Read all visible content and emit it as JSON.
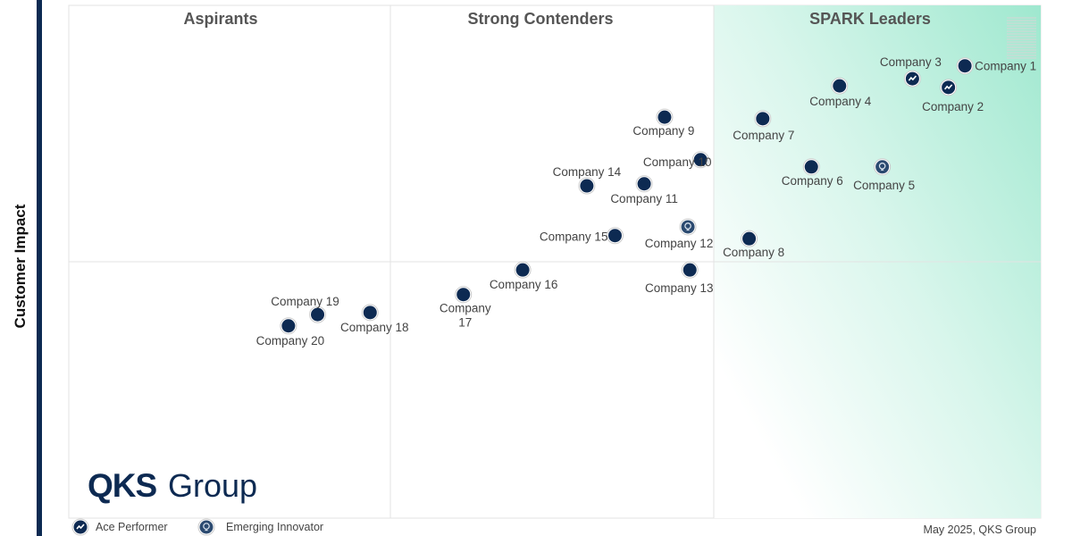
{
  "chart_data": {
    "type": "scatter",
    "title": "",
    "xlabel": "",
    "ylabel": "Customer Impact",
    "xlim": [
      0,
      100
    ],
    "ylim": [
      0,
      100
    ],
    "grid": "quadrant dividers",
    "quadrants": [
      "Aspirants",
      "Strong Contenders",
      "SPARK Leaders"
    ],
    "legend": {
      "placement": "bottom-left",
      "items": [
        {
          "key": "ace",
          "label": "Ace Performer"
        },
        {
          "key": "innovator",
          "label": "Emerging Innovator"
        }
      ]
    },
    "colors": {
      "marker": "#0d2a52",
      "innovator": "#2b4a70",
      "leader_gradient": "#9fe8cf",
      "axis_bar": "#0d2a52"
    },
    "points": [
      {
        "name": "Company 1",
        "x": 92.2,
        "y": 88.2,
        "type": "standard"
      },
      {
        "name": "Company 2",
        "x": 90.5,
        "y": 84.0,
        "type": "ace"
      },
      {
        "name": "Company 3",
        "x": 86.8,
        "y": 85.7,
        "type": "ace"
      },
      {
        "name": "Company 4",
        "x": 79.3,
        "y": 84.3,
        "type": "standard"
      },
      {
        "name": "Company 5",
        "x": 83.7,
        "y": 68.5,
        "type": "innovator"
      },
      {
        "name": "Company 6",
        "x": 76.4,
        "y": 68.5,
        "type": "standard"
      },
      {
        "name": "Company 7",
        "x": 71.4,
        "y": 77.9,
        "type": "standard"
      },
      {
        "name": "Company 8",
        "x": 70.0,
        "y": 54.5,
        "type": "standard"
      },
      {
        "name": "Company 9",
        "x": 61.3,
        "y": 78.2,
        "type": "standard"
      },
      {
        "name": "Company 10",
        "x": 65.0,
        "y": 69.9,
        "type": "standard"
      },
      {
        "name": "Company 11",
        "x": 59.2,
        "y": 65.2,
        "type": "standard"
      },
      {
        "name": "Company 12",
        "x": 63.7,
        "y": 56.8,
        "type": "innovator"
      },
      {
        "name": "Company 13",
        "x": 63.9,
        "y": 48.4,
        "type": "standard"
      },
      {
        "name": "Company 14",
        "x": 53.3,
        "y": 64.8,
        "type": "standard"
      },
      {
        "name": "Company 15",
        "x": 56.2,
        "y": 55.1,
        "type": "standard"
      },
      {
        "name": "Company 16",
        "x": 46.7,
        "y": 48.4,
        "type": "standard"
      },
      {
        "name": "Company 17",
        "x": 40.6,
        "y": 43.6,
        "type": "standard"
      },
      {
        "name": "Company 18",
        "x": 31.0,
        "y": 40.1,
        "type": "standard"
      },
      {
        "name": "Company 19",
        "x": 25.6,
        "y": 39.7,
        "type": "standard"
      },
      {
        "name": "Company 20",
        "x": 22.6,
        "y": 37.5,
        "type": "standard"
      }
    ]
  },
  "logo": {
    "bold": "QKS",
    "light": "Group"
  },
  "footer": {
    "credit": "May  2025, QKS Group"
  }
}
